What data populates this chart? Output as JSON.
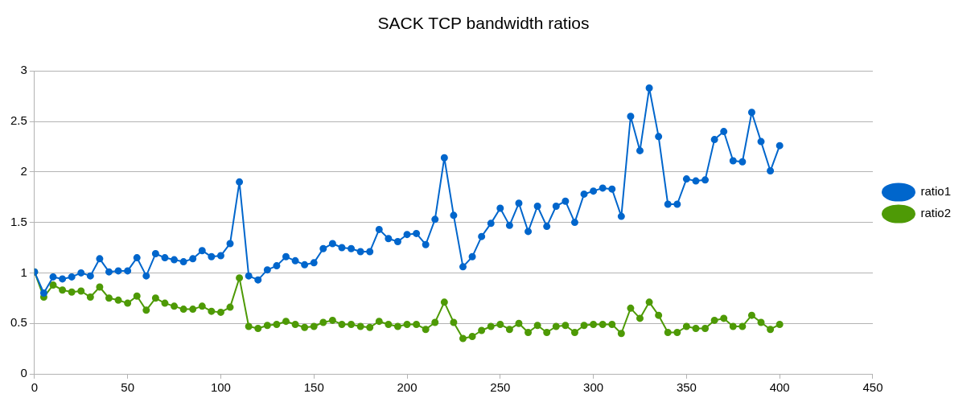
{
  "chart_data": {
    "type": "line",
    "title": "SACK TCP bandwidth ratios",
    "x": [
      0,
      5,
      10,
      15,
      20,
      25,
      30,
      35,
      40,
      45,
      50,
      55,
      60,
      65,
      70,
      75,
      80,
      85,
      90,
      95,
      100,
      105,
      110,
      115,
      120,
      125,
      130,
      135,
      140,
      145,
      150,
      155,
      160,
      165,
      170,
      175,
      180,
      185,
      190,
      195,
      200,
      205,
      210,
      215,
      220,
      225,
      230,
      235,
      240,
      245,
      250,
      255,
      260,
      265,
      270,
      275,
      280,
      285,
      290,
      295,
      300,
      305,
      310,
      315,
      320,
      325,
      330,
      335,
      340,
      345,
      350,
      355,
      360,
      365,
      370,
      375,
      380,
      385,
      390,
      395,
      400
    ],
    "series": [
      {
        "name": "ratio1",
        "color": "#0066cc",
        "values": [
          1.01,
          0.8,
          0.96,
          0.94,
          0.96,
          1.0,
          0.97,
          1.14,
          1.01,
          1.02,
          1.02,
          1.15,
          0.97,
          1.19,
          1.15,
          1.13,
          1.11,
          1.14,
          1.22,
          1.16,
          1.17,
          1.29,
          1.9,
          0.97,
          0.93,
          1.03,
          1.07,
          1.16,
          1.12,
          1.08,
          1.1,
          1.24,
          1.29,
          1.25,
          1.24,
          1.21,
          1.21,
          1.43,
          1.34,
          1.31,
          1.38,
          1.39,
          1.28,
          1.53,
          2.14,
          1.57,
          1.06,
          1.16,
          1.36,
          1.49,
          1.64,
          1.47,
          1.69,
          1.41,
          1.66,
          1.46,
          1.66,
          1.71,
          1.5,
          1.78,
          1.81,
          1.84,
          1.83,
          1.56,
          2.55,
          2.21,
          2.83,
          2.35,
          1.68,
          1.68,
          1.93,
          1.91,
          1.92,
          2.32,
          2.4,
          2.11,
          2.1,
          2.59,
          2.3,
          2.01,
          2.26
        ]
      },
      {
        "name": "ratio2",
        "color": "#4e9a06",
        "values": [
          1.01,
          0.76,
          0.88,
          0.83,
          0.81,
          0.82,
          0.76,
          0.86,
          0.75,
          0.73,
          0.7,
          0.77,
          0.63,
          0.75,
          0.7,
          0.67,
          0.64,
          0.64,
          0.67,
          0.62,
          0.61,
          0.66,
          0.95,
          0.47,
          0.45,
          0.48,
          0.49,
          0.52,
          0.49,
          0.46,
          0.47,
          0.51,
          0.53,
          0.49,
          0.49,
          0.47,
          0.46,
          0.52,
          0.49,
          0.47,
          0.49,
          0.49,
          0.44,
          0.51,
          0.71,
          0.51,
          0.35,
          0.37,
          0.43,
          0.47,
          0.49,
          0.44,
          0.5,
          0.41,
          0.48,
          0.41,
          0.47,
          0.48,
          0.41,
          0.48,
          0.49,
          0.49,
          0.49,
          0.4,
          0.65,
          0.55,
          0.71,
          0.58,
          0.41,
          0.41,
          0.47,
          0.45,
          0.45,
          0.53,
          0.55,
          0.47,
          0.47,
          0.58,
          0.51,
          0.44,
          0.49
        ]
      }
    ],
    "xlim": [
      0,
      450
    ],
    "xticks": [
      0,
      50,
      100,
      150,
      200,
      250,
      300,
      350,
      400,
      450
    ],
    "ylim": [
      0,
      3
    ],
    "yticks": [
      0,
      0.5,
      1,
      1.5,
      2,
      2.5,
      3
    ],
    "grid": "y",
    "legend": "right",
    "marker": "circle",
    "line_style": "solid"
  }
}
